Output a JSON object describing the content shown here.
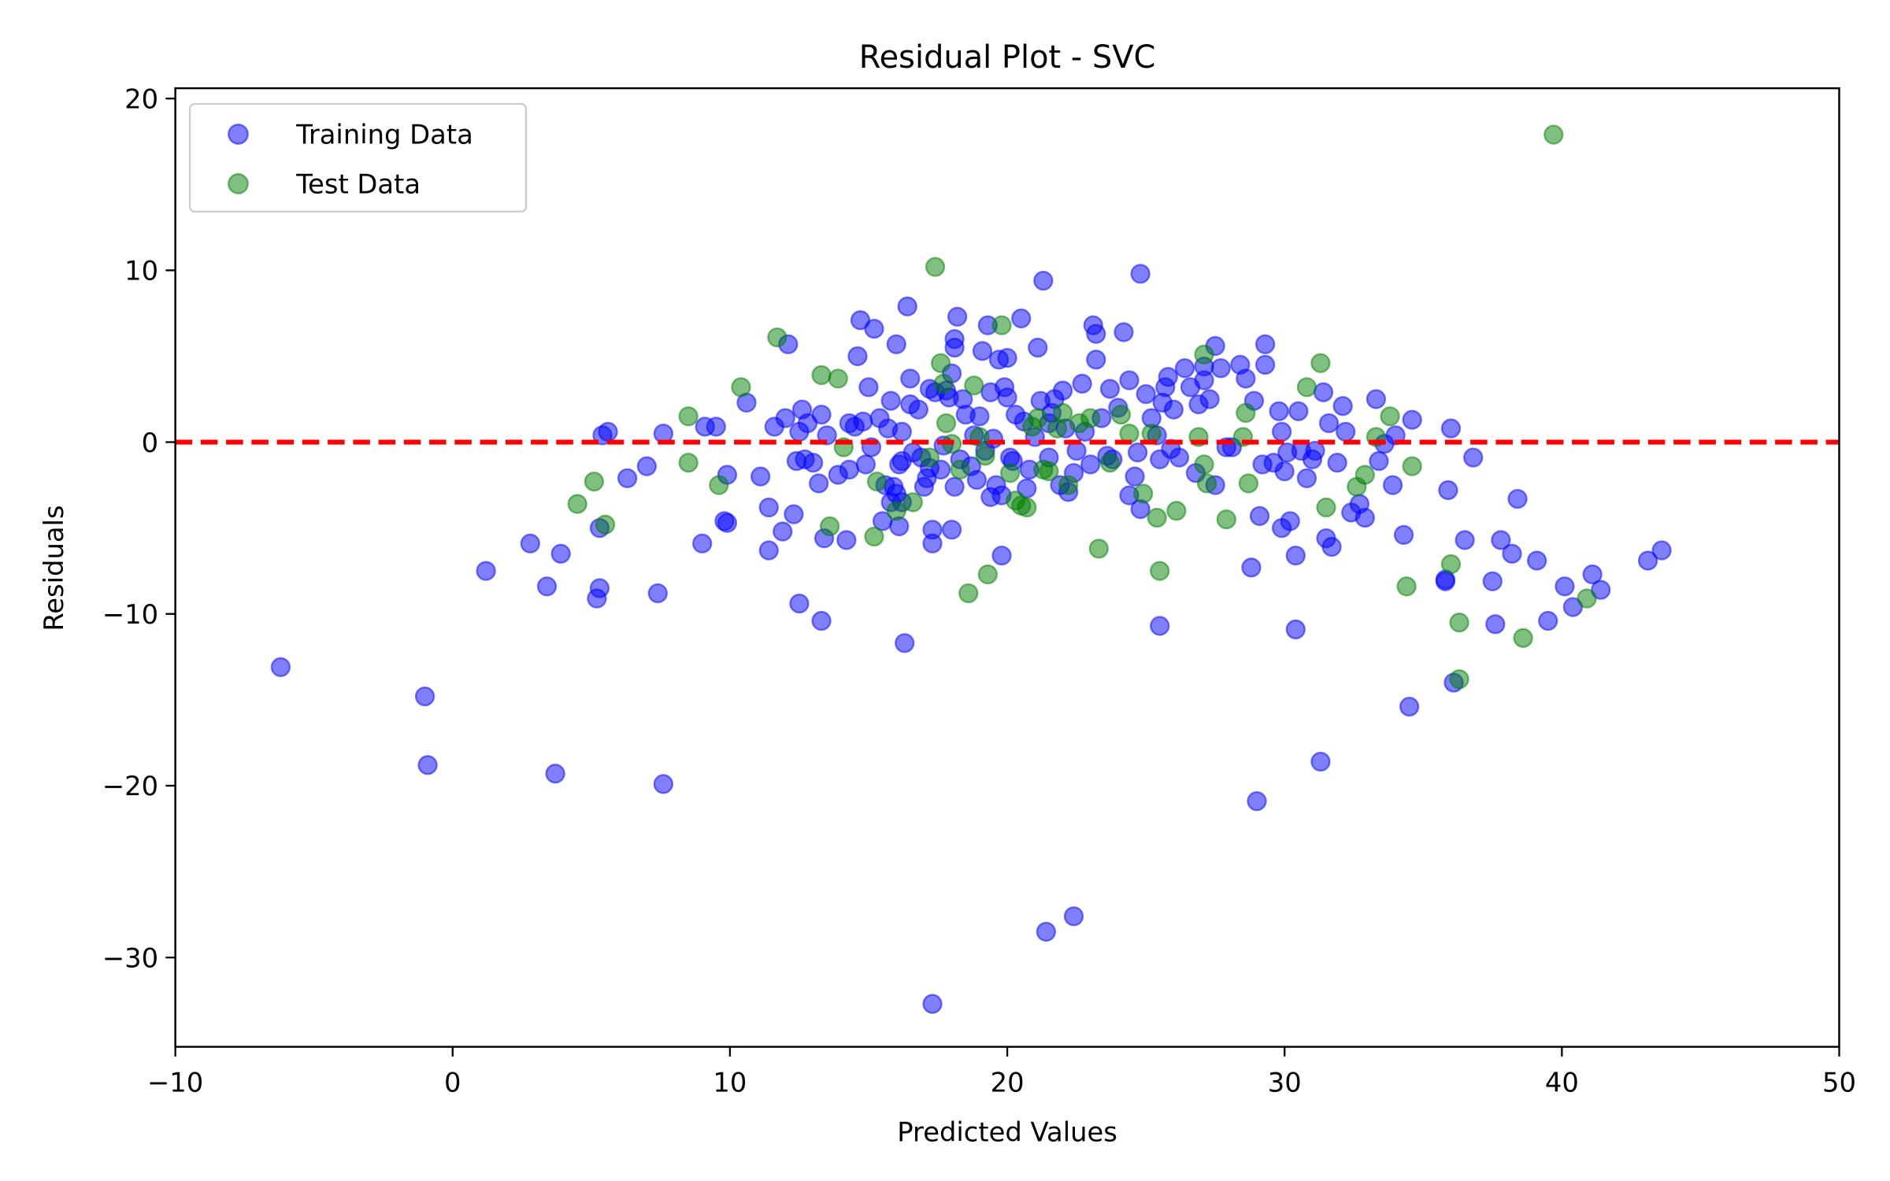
{
  "chart_data": {
    "type": "scatter",
    "title": "Residual Plot - SVC",
    "xlabel": "Predicted Values",
    "ylabel": "Residuals",
    "xlim": [
      -10,
      50
    ],
    "ylim": [
      -35.2,
      20.6
    ],
    "xticks": [
      -10,
      0,
      10,
      20,
      30,
      40,
      50
    ],
    "xtick_labels": [
      "−10",
      "0",
      "10",
      "20",
      "30",
      "40",
      "50"
    ],
    "yticks": [
      -30,
      -20,
      -10,
      0,
      10,
      20
    ],
    "ytick_labels": [
      "−30",
      "−20",
      "−10",
      "0",
      "10",
      "20"
    ],
    "grid": false,
    "legend_position": "top-left",
    "reference_line": {
      "y": 0,
      "color": "#ff0000",
      "style": "dashed"
    },
    "series": [
      {
        "name": "Training Data",
        "color": "#0000ff",
        "alpha": 0.5,
        "points": [
          [
            -6.2,
            -13.1
          ],
          [
            -1.0,
            -14.8
          ],
          [
            -0.9,
            -18.8
          ],
          [
            1.2,
            -7.5
          ],
          [
            2.8,
            -5.9
          ],
          [
            3.4,
            -8.4
          ],
          [
            3.7,
            -19.3
          ],
          [
            3.9,
            -6.5
          ],
          [
            5.2,
            -9.1
          ],
          [
            5.3,
            -8.5
          ],
          [
            5.3,
            -5.0
          ],
          [
            5.4,
            0.4
          ],
          [
            5.6,
            0.6
          ],
          [
            6.3,
            -2.1
          ],
          [
            7.0,
            -1.4
          ],
          [
            7.4,
            -8.8
          ],
          [
            7.6,
            -19.9
          ],
          [
            7.6,
            0.5
          ],
          [
            9.0,
            -5.9
          ],
          [
            9.1,
            0.9
          ],
          [
            9.5,
            0.9
          ],
          [
            9.8,
            -4.6
          ],
          [
            9.9,
            -4.7
          ],
          [
            9.9,
            -1.9
          ],
          [
            10.6,
            2.3
          ],
          [
            11.1,
            -2.0
          ],
          [
            11.4,
            -3.8
          ],
          [
            11.4,
            -6.3
          ],
          [
            11.6,
            0.9
          ],
          [
            11.9,
            -5.2
          ],
          [
            12.0,
            1.4
          ],
          [
            12.1,
            5.7
          ],
          [
            12.3,
            -4.2
          ],
          [
            12.4,
            -1.1
          ],
          [
            12.5,
            0.6
          ],
          [
            12.5,
            -9.4
          ],
          [
            12.6,
            1.9
          ],
          [
            12.7,
            -1.0
          ],
          [
            12.8,
            1.1
          ],
          [
            13.0,
            -1.2
          ],
          [
            13.2,
            -2.4
          ],
          [
            13.3,
            1.6
          ],
          [
            13.3,
            -10.4
          ],
          [
            13.4,
            -5.6
          ],
          [
            13.5,
            0.4
          ],
          [
            13.9,
            -1.9
          ],
          [
            14.2,
            -5.7
          ],
          [
            14.3,
            1.1
          ],
          [
            14.3,
            -1.6
          ],
          [
            14.5,
            0.9
          ],
          [
            14.6,
            5.0
          ],
          [
            14.7,
            7.1
          ],
          [
            14.8,
            1.2
          ],
          [
            14.9,
            -1.3
          ],
          [
            15.0,
            3.2
          ],
          [
            15.1,
            -0.3
          ],
          [
            15.2,
            6.6
          ],
          [
            15.4,
            1.4
          ],
          [
            15.5,
            -4.6
          ],
          [
            15.6,
            -2.5
          ],
          [
            15.7,
            0.8
          ],
          [
            15.8,
            2.4
          ],
          [
            15.8,
            -3.5
          ],
          [
            15.9,
            -2.6
          ],
          [
            16.0,
            -3.0
          ],
          [
            16.0,
            5.7
          ],
          [
            16.1,
            -4.9
          ],
          [
            16.1,
            -1.3
          ],
          [
            16.2,
            -1.1
          ],
          [
            16.2,
            -3.5
          ],
          [
            16.2,
            0.6
          ],
          [
            16.3,
            -11.7
          ],
          [
            16.4,
            7.9
          ],
          [
            16.5,
            2.2
          ],
          [
            16.5,
            3.7
          ],
          [
            16.6,
            -0.6
          ],
          [
            16.8,
            1.9
          ],
          [
            16.9,
            -0.9
          ],
          [
            17.0,
            -2.6
          ],
          [
            17.1,
            -2.1
          ],
          [
            17.2,
            3.1
          ],
          [
            17.2,
            -1.5
          ],
          [
            17.3,
            -32.7
          ],
          [
            17.3,
            -5.1
          ],
          [
            17.3,
            -5.9
          ],
          [
            17.4,
            2.9
          ],
          [
            17.6,
            -1.6
          ],
          [
            17.7,
            -0.2
          ],
          [
            17.8,
            3.0
          ],
          [
            17.9,
            2.6
          ],
          [
            18.0,
            -5.1
          ],
          [
            18.0,
            4.0
          ],
          [
            18.1,
            -2.6
          ],
          [
            18.1,
            5.5
          ],
          [
            18.1,
            6.0
          ],
          [
            18.2,
            7.3
          ],
          [
            18.3,
            -1.0
          ],
          [
            18.4,
            2.5
          ],
          [
            18.5,
            1.6
          ],
          [
            18.7,
            -1.4
          ],
          [
            18.8,
            0.4
          ],
          [
            18.9,
            -2.2
          ],
          [
            19.0,
            1.5
          ],
          [
            19.1,
            5.3
          ],
          [
            19.2,
            -0.5
          ],
          [
            19.3,
            6.8
          ],
          [
            19.4,
            2.9
          ],
          [
            19.4,
            -3.2
          ],
          [
            19.5,
            0.2
          ],
          [
            19.6,
            -2.5
          ],
          [
            19.7,
            4.8
          ],
          [
            19.8,
            -6.6
          ],
          [
            19.8,
            -3.1
          ],
          [
            19.9,
            3.2
          ],
          [
            20.0,
            2.6
          ],
          [
            20.0,
            4.9
          ],
          [
            20.1,
            -0.9
          ],
          [
            20.2,
            -1.1
          ],
          [
            20.3,
            1.6
          ],
          [
            20.5,
            7.2
          ],
          [
            20.6,
            1.2
          ],
          [
            20.7,
            -2.7
          ],
          [
            20.8,
            -1.6
          ],
          [
            21.0,
            0.3
          ],
          [
            21.1,
            5.5
          ],
          [
            21.2,
            2.4
          ],
          [
            21.3,
            9.4
          ],
          [
            21.4,
            -28.5
          ],
          [
            21.5,
            1.1
          ],
          [
            21.5,
            -0.9
          ],
          [
            21.6,
            1.7
          ],
          [
            21.7,
            2.5
          ],
          [
            21.9,
            -2.5
          ],
          [
            22.0,
            3.0
          ],
          [
            22.1,
            0.8
          ],
          [
            22.2,
            -2.9
          ],
          [
            22.4,
            -27.6
          ],
          [
            22.4,
            -1.8
          ],
          [
            22.5,
            -0.5
          ],
          [
            22.7,
            3.4
          ],
          [
            22.8,
            0.6
          ],
          [
            23.0,
            -1.3
          ],
          [
            23.1,
            6.8
          ],
          [
            23.2,
            6.3
          ],
          [
            23.2,
            4.8
          ],
          [
            23.4,
            1.4
          ],
          [
            23.6,
            -0.8
          ],
          [
            23.7,
            3.1
          ],
          [
            23.8,
            -1.0
          ],
          [
            24.0,
            2.0
          ],
          [
            24.2,
            6.4
          ],
          [
            24.4,
            -3.1
          ],
          [
            24.4,
            3.6
          ],
          [
            24.6,
            -2.0
          ],
          [
            24.7,
            -0.6
          ],
          [
            24.8,
            9.8
          ],
          [
            24.8,
            -3.9
          ],
          [
            25.0,
            2.8
          ],
          [
            25.2,
            1.4
          ],
          [
            25.4,
            0.4
          ],
          [
            25.5,
            -1.0
          ],
          [
            25.5,
            -10.7
          ],
          [
            25.6,
            2.3
          ],
          [
            25.7,
            3.2
          ],
          [
            25.8,
            3.8
          ],
          [
            25.9,
            -0.4
          ],
          [
            26.0,
            1.9
          ],
          [
            26.2,
            -0.9
          ],
          [
            26.4,
            4.3
          ],
          [
            26.6,
            3.2
          ],
          [
            26.8,
            -1.8
          ],
          [
            26.9,
            2.2
          ],
          [
            27.1,
            3.6
          ],
          [
            27.1,
            4.4
          ],
          [
            27.3,
            2.5
          ],
          [
            27.5,
            5.6
          ],
          [
            27.5,
            -2.5
          ],
          [
            27.7,
            4.3
          ],
          [
            27.9,
            -0.3
          ],
          [
            28.1,
            -0.3
          ],
          [
            28.4,
            4.5
          ],
          [
            28.6,
            3.7
          ],
          [
            28.8,
            -7.3
          ],
          [
            28.9,
            2.4
          ],
          [
            29.0,
            -20.9
          ],
          [
            29.1,
            -4.3
          ],
          [
            29.2,
            -1.3
          ],
          [
            29.3,
            4.5
          ],
          [
            29.3,
            5.7
          ],
          [
            29.6,
            -1.2
          ],
          [
            29.8,
            1.8
          ],
          [
            29.9,
            0.6
          ],
          [
            29.9,
            -5.0
          ],
          [
            30.0,
            -1.7
          ],
          [
            30.1,
            -0.6
          ],
          [
            30.2,
            -4.6
          ],
          [
            30.4,
            -6.6
          ],
          [
            30.4,
            -10.9
          ],
          [
            30.5,
            1.8
          ],
          [
            30.6,
            -0.5
          ],
          [
            30.8,
            -2.1
          ],
          [
            31.0,
            -1.0
          ],
          [
            31.1,
            -0.5
          ],
          [
            31.3,
            -18.6
          ],
          [
            31.4,
            2.9
          ],
          [
            31.5,
            -5.6
          ],
          [
            31.6,
            1.1
          ],
          [
            31.7,
            -6.1
          ],
          [
            31.9,
            -1.2
          ],
          [
            32.1,
            2.1
          ],
          [
            32.2,
            0.6
          ],
          [
            32.4,
            -4.1
          ],
          [
            32.7,
            -3.6
          ],
          [
            32.9,
            -4.4
          ],
          [
            33.3,
            2.5
          ],
          [
            33.4,
            -1.1
          ],
          [
            33.6,
            -0.1
          ],
          [
            33.9,
            -2.5
          ],
          [
            34.0,
            0.4
          ],
          [
            34.3,
            -5.4
          ],
          [
            34.5,
            -15.4
          ],
          [
            34.6,
            1.3
          ],
          [
            35.8,
            -8.0
          ],
          [
            35.8,
            -8.1
          ],
          [
            35.9,
            -2.8
          ],
          [
            36.0,
            0.8
          ],
          [
            36.1,
            -14.0
          ],
          [
            36.5,
            -5.7
          ],
          [
            36.8,
            -0.9
          ],
          [
            37.5,
            -8.1
          ],
          [
            37.6,
            -10.6
          ],
          [
            37.8,
            -5.7
          ],
          [
            38.2,
            -6.5
          ],
          [
            38.4,
            -3.3
          ],
          [
            39.1,
            -6.9
          ],
          [
            39.5,
            -10.4
          ],
          [
            40.1,
            -8.4
          ],
          [
            40.4,
            -9.6
          ],
          [
            41.1,
            -7.7
          ],
          [
            41.4,
            -8.6
          ],
          [
            43.1,
            -6.9
          ],
          [
            43.6,
            -6.3
          ]
        ]
      },
      {
        "name": "Test Data",
        "color": "#008000",
        "alpha": 0.5,
        "points": [
          [
            4.5,
            -3.6
          ],
          [
            5.1,
            -2.3
          ],
          [
            5.5,
            -4.8
          ],
          [
            8.5,
            1.5
          ],
          [
            8.5,
            -1.2
          ],
          [
            9.6,
            -2.5
          ],
          [
            10.4,
            3.2
          ],
          [
            11.7,
            6.1
          ],
          [
            13.3,
            3.9
          ],
          [
            13.6,
            -4.9
          ],
          [
            13.9,
            3.7
          ],
          [
            14.1,
            -0.3
          ],
          [
            15.2,
            -5.5
          ],
          [
            15.3,
            -2.3
          ],
          [
            16.0,
            -4.0
          ],
          [
            16.6,
            -3.5
          ],
          [
            17.2,
            -0.9
          ],
          [
            17.4,
            10.2
          ],
          [
            17.6,
            4.6
          ],
          [
            17.7,
            3.4
          ],
          [
            17.8,
            1.1
          ],
          [
            18.0,
            -0.1
          ],
          [
            18.3,
            -1.6
          ],
          [
            18.6,
            -8.8
          ],
          [
            18.8,
            3.3
          ],
          [
            19.0,
            0.3
          ],
          [
            19.2,
            -0.8
          ],
          [
            19.3,
            -7.7
          ],
          [
            19.8,
            6.8
          ],
          [
            20.1,
            -1.8
          ],
          [
            20.3,
            -3.4
          ],
          [
            20.5,
            -3.7
          ],
          [
            20.7,
            -3.8
          ],
          [
            20.9,
            0.9
          ],
          [
            21.1,
            1.4
          ],
          [
            21.3,
            -1.6
          ],
          [
            21.5,
            -1.7
          ],
          [
            21.8,
            0.8
          ],
          [
            22.0,
            1.7
          ],
          [
            22.2,
            -2.5
          ],
          [
            22.6,
            1.1
          ],
          [
            23.0,
            1.4
          ],
          [
            23.3,
            -6.2
          ],
          [
            23.7,
            -1.2
          ],
          [
            24.1,
            1.6
          ],
          [
            24.4,
            0.5
          ],
          [
            24.9,
            -3.0
          ],
          [
            25.2,
            0.5
          ],
          [
            25.4,
            -4.4
          ],
          [
            25.5,
            -7.5
          ],
          [
            26.1,
            -4.0
          ],
          [
            26.9,
            0.3
          ],
          [
            27.1,
            5.1
          ],
          [
            27.1,
            -1.3
          ],
          [
            27.2,
            -2.4
          ],
          [
            27.9,
            -4.5
          ],
          [
            28.5,
            0.3
          ],
          [
            28.6,
            1.7
          ],
          [
            28.7,
            -2.4
          ],
          [
            30.8,
            3.2
          ],
          [
            31.3,
            4.6
          ],
          [
            31.5,
            -3.8
          ],
          [
            32.6,
            -2.6
          ],
          [
            32.9,
            -1.9
          ],
          [
            33.3,
            0.3
          ],
          [
            33.8,
            1.5
          ],
          [
            34.4,
            -8.4
          ],
          [
            34.6,
            -1.4
          ],
          [
            36.0,
            -7.1
          ],
          [
            36.3,
            -10.5
          ],
          [
            36.3,
            -13.8
          ],
          [
            38.6,
            -11.4
          ],
          [
            39.7,
            17.9
          ],
          [
            40.9,
            -9.1
          ]
        ]
      }
    ]
  }
}
